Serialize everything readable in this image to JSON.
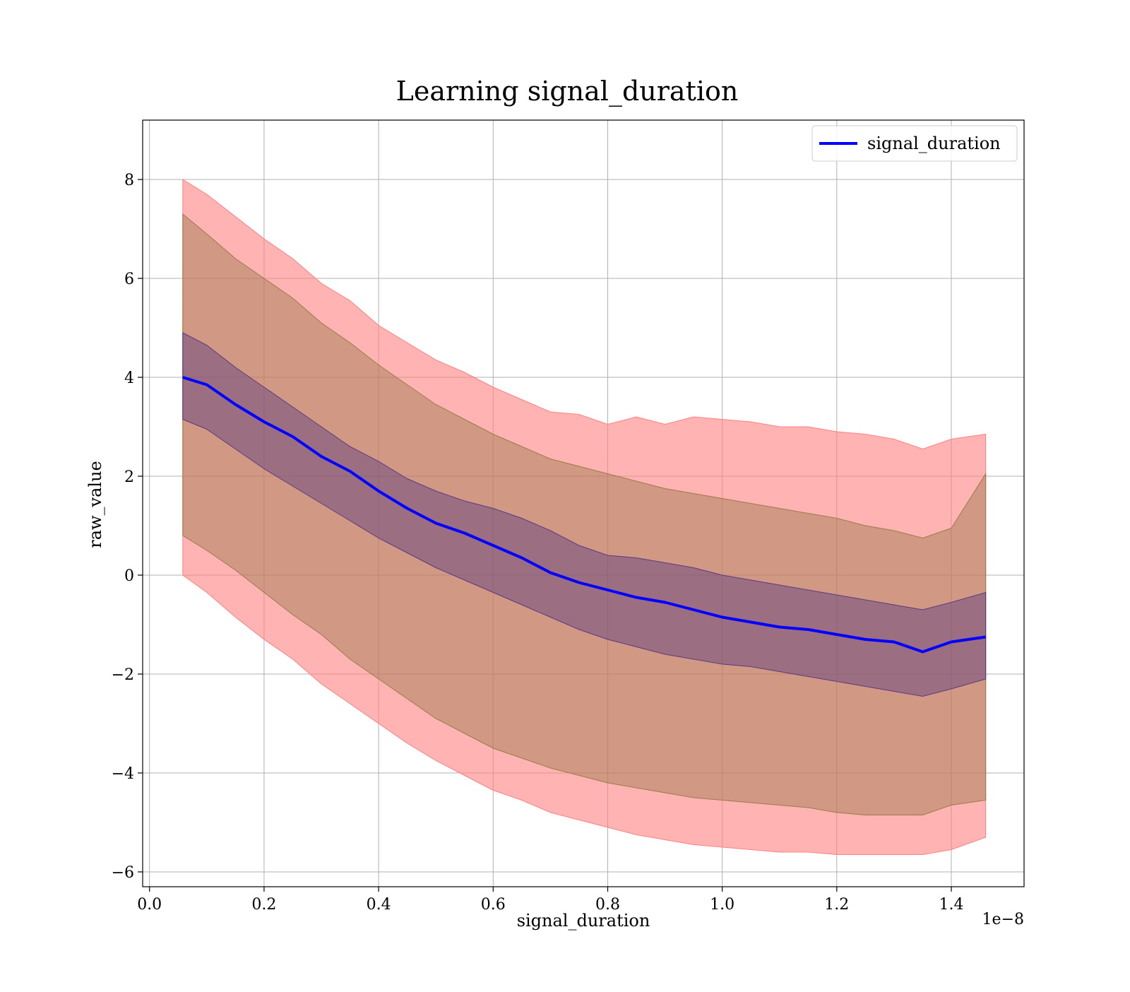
{
  "chart_data": {
    "type": "line",
    "title": "Learning signal_duration",
    "xlabel": "signal_duration",
    "ylabel": "raw_value",
    "x_offset_label": "1e−8",
    "xlim": [
      -0.012,
      1.527
    ],
    "ylim": [
      -6.3,
      9.2
    ],
    "xticks": [
      0.0,
      0.2,
      0.4,
      0.6,
      0.8,
      1.0,
      1.2,
      1.4
    ],
    "xtick_labels": [
      "0.0",
      "0.2",
      "0.4",
      "0.6",
      "0.8",
      "1.0",
      "1.2",
      "1.4"
    ],
    "yticks": [
      -6,
      -4,
      -2,
      0,
      2,
      4,
      6,
      8
    ],
    "ytick_labels": [
      "−6",
      "−4",
      "−2",
      "0",
      "2",
      "4",
      "6",
      "8"
    ],
    "grid": true,
    "legend": {
      "position": "top-right",
      "entries": [
        "signal_duration"
      ]
    },
    "colors": {
      "mean_line": "#0000ff",
      "band_2sigma": "#ff8080",
      "band_1sigma": "#9a7a4a",
      "band_inner": "#5a3a80",
      "grid": "#b0b0b0"
    },
    "series": [
      {
        "name": "signal_duration",
        "x": [
          0.058,
          0.1,
          0.15,
          0.2,
          0.25,
          0.3,
          0.35,
          0.4,
          0.45,
          0.5,
          0.55,
          0.6,
          0.65,
          0.7,
          0.75,
          0.8,
          0.85,
          0.9,
          0.95,
          1.0,
          1.05,
          1.1,
          1.15,
          1.2,
          1.25,
          1.3,
          1.35,
          1.4,
          1.46
        ],
        "y": [
          4.0,
          3.85,
          3.45,
          3.1,
          2.8,
          2.4,
          2.1,
          1.7,
          1.35,
          1.05,
          0.85,
          0.6,
          0.35,
          0.05,
          -0.15,
          -0.3,
          -0.45,
          -0.55,
          -0.7,
          -0.85,
          -0.95,
          -1.05,
          -1.1,
          -1.2,
          -1.3,
          -1.35,
          -1.55,
          -1.35,
          -1.25
        ],
        "band_1sigma_upper": [
          7.3,
          6.9,
          6.4,
          6.0,
          5.6,
          5.1,
          4.7,
          4.25,
          3.85,
          3.45,
          3.15,
          2.85,
          2.6,
          2.35,
          2.2,
          2.05,
          1.9,
          1.75,
          1.65,
          1.55,
          1.45,
          1.35,
          1.25,
          1.15,
          1.0,
          0.9,
          0.75,
          0.95,
          2.05
        ],
        "band_1sigma_lower": [
          0.8,
          0.5,
          0.1,
          -0.35,
          -0.8,
          -1.2,
          -1.7,
          -2.1,
          -2.5,
          -2.9,
          -3.2,
          -3.5,
          -3.7,
          -3.9,
          -4.05,
          -4.2,
          -4.3,
          -4.4,
          -4.5,
          -4.55,
          -4.6,
          -4.65,
          -4.7,
          -4.8,
          -4.85,
          -4.85,
          -4.85,
          -4.65,
          -4.55
        ],
        "band_2sigma_upper": [
          8.0,
          7.7,
          7.25,
          6.8,
          6.4,
          5.9,
          5.55,
          5.05,
          4.7,
          4.35,
          4.1,
          3.8,
          3.55,
          3.3,
          3.25,
          3.05,
          3.2,
          3.05,
          3.2,
          3.15,
          3.1,
          3.0,
          3.0,
          2.9,
          2.85,
          2.75,
          2.55,
          2.75,
          2.85
        ],
        "band_2sigma_lower": [
          0.0,
          -0.35,
          -0.85,
          -1.3,
          -1.7,
          -2.2,
          -2.6,
          -3.0,
          -3.4,
          -3.75,
          -4.05,
          -4.35,
          -4.55,
          -4.8,
          -4.95,
          -5.1,
          -5.25,
          -5.35,
          -5.45,
          -5.5,
          -5.55,
          -5.6,
          -5.6,
          -5.65,
          -5.65,
          -5.65,
          -5.65,
          -5.55,
          -5.3
        ],
        "band_inner_upper": [
          4.9,
          4.65,
          4.2,
          3.8,
          3.4,
          3.0,
          2.6,
          2.3,
          1.95,
          1.7,
          1.5,
          1.35,
          1.15,
          0.9,
          0.6,
          0.4,
          0.35,
          0.25,
          0.15,
          0.0,
          -0.1,
          -0.2,
          -0.3,
          -0.4,
          -0.5,
          -0.6,
          -0.7,
          -0.55,
          -0.35
        ],
        "band_inner_lower": [
          3.15,
          2.95,
          2.55,
          2.15,
          1.8,
          1.45,
          1.1,
          0.75,
          0.45,
          0.15,
          -0.1,
          -0.35,
          -0.6,
          -0.85,
          -1.1,
          -1.3,
          -1.45,
          -1.6,
          -1.7,
          -1.8,
          -1.85,
          -1.95,
          -2.05,
          -2.15,
          -2.25,
          -2.35,
          -2.45,
          -2.3,
          -2.1
        ]
      }
    ]
  }
}
